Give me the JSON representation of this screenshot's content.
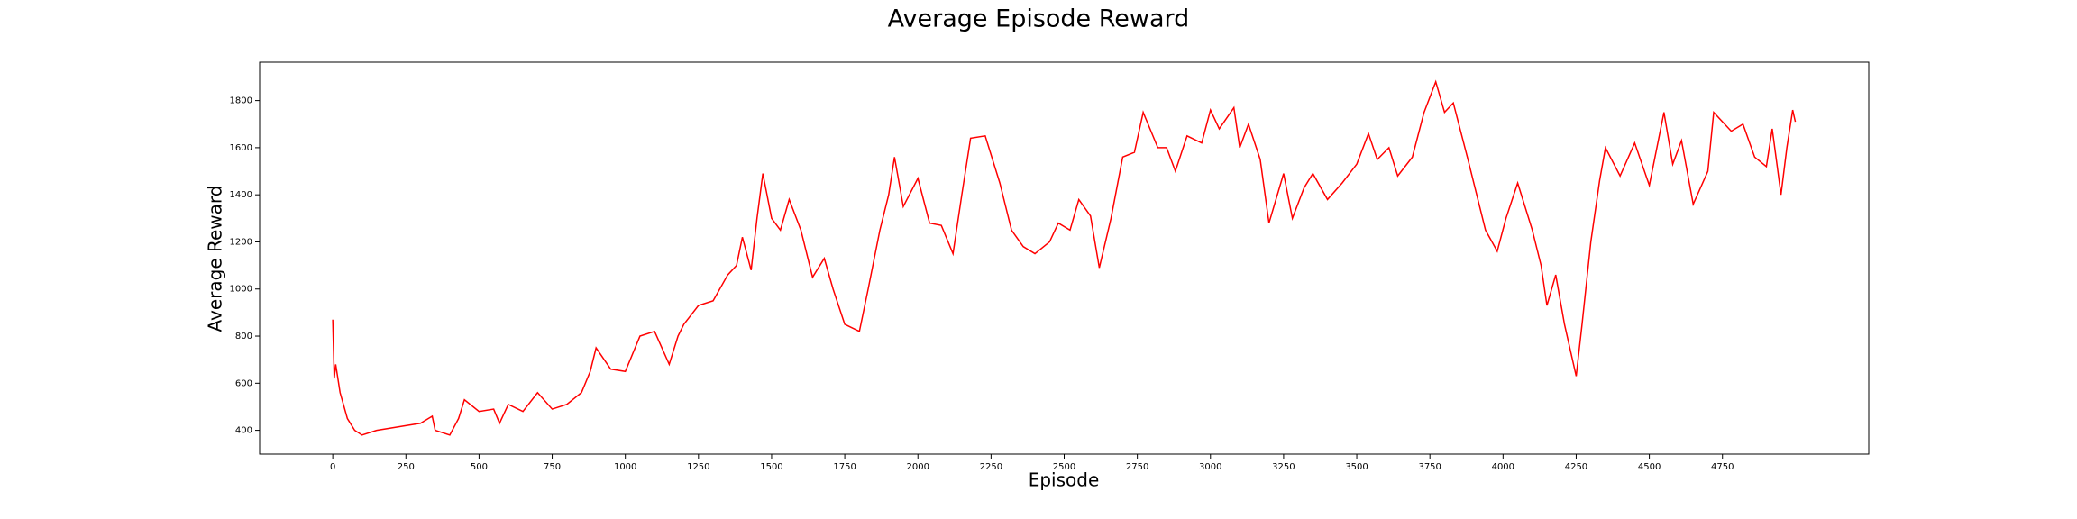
{
  "chart_data": {
    "type": "line",
    "title": "Average Episode Reward",
    "x_label": "Episode",
    "y_label": "Average Reward",
    "color": "#ff0000",
    "x": [
      0,
      5,
      10,
      25,
      50,
      75,
      100,
      150,
      200,
      250,
      300,
      340,
      350,
      400,
      430,
      450,
      500,
      550,
      570,
      600,
      650,
      700,
      750,
      800,
      850,
      880,
      900,
      950,
      1000,
      1050,
      1100,
      1150,
      1180,
      1200,
      1250,
      1300,
      1350,
      1380,
      1400,
      1430,
      1450,
      1470,
      1500,
      1530,
      1560,
      1600,
      1640,
      1680,
      1710,
      1750,
      1800,
      1830,
      1870,
      1900,
      1920,
      1950,
      2000,
      2040,
      2080,
      2120,
      2150,
      2180,
      2230,
      2280,
      2320,
      2360,
      2400,
      2450,
      2480,
      2520,
      2550,
      2590,
      2620,
      2660,
      2700,
      2740,
      2770,
      2820,
      2850,
      2880,
      2920,
      2970,
      3000,
      3030,
      3080,
      3100,
      3130,
      3170,
      3200,
      3250,
      3280,
      3320,
      3350,
      3400,
      3450,
      3500,
      3540,
      3570,
      3610,
      3640,
      3690,
      3730,
      3770,
      3800,
      3830,
      3880,
      3910,
      3940,
      3980,
      4010,
      4050,
      4100,
      4130,
      4150,
      4180,
      4210,
      4250,
      4270,
      4300,
      4330,
      4350,
      4400,
      4450,
      4500,
      4550,
      4580,
      4610,
      4650,
      4700,
      4720,
      4780,
      4820,
      4860,
      4900,
      4920,
      4950,
      4970,
      4990,
      4999
    ],
    "values": [
      870,
      620,
      680,
      560,
      450,
      400,
      380,
      400,
      410,
      420,
      430,
      460,
      400,
      380,
      450,
      530,
      480,
      490,
      430,
      510,
      480,
      560,
      490,
      510,
      560,
      650,
      750,
      660,
      650,
      800,
      820,
      680,
      800,
      850,
      930,
      950,
      1060,
      1100,
      1220,
      1080,
      1300,
      1490,
      1300,
      1250,
      1380,
      1250,
      1050,
      1130,
      1000,
      850,
      820,
      1000,
      1250,
      1400,
      1560,
      1350,
      1470,
      1280,
      1270,
      1150,
      1400,
      1640,
      1650,
      1450,
      1250,
      1180,
      1150,
      1200,
      1280,
      1250,
      1380,
      1310,
      1090,
      1300,
      1560,
      1580,
      1750,
      1600,
      1600,
      1500,
      1650,
      1620,
      1760,
      1680,
      1770,
      1600,
      1700,
      1550,
      1280,
      1490,
      1300,
      1430,
      1490,
      1380,
      1450,
      1530,
      1660,
      1550,
      1600,
      1480,
      1560,
      1750,
      1880,
      1750,
      1790,
      1550,
      1400,
      1250,
      1160,
      1300,
      1450,
      1250,
      1100,
      930,
      1060,
      850,
      630,
      850,
      1200,
      1460,
      1600,
      1480,
      1620,
      1440,
      1750,
      1530,
      1630,
      1360,
      1500,
      1750,
      1670,
      1700,
      1560,
      1520,
      1680,
      1400,
      1600,
      1760,
      1710
    ],
    "xlim": [
      -250,
      5250
    ],
    "ylim": [
      299,
      1963
    ],
    "xticks": [
      0,
      250,
      500,
      750,
      1000,
      1250,
      1500,
      1750,
      2000,
      2250,
      2500,
      2750,
      3000,
      3250,
      3500,
      3750,
      4000,
      4250,
      4500,
      4750
    ],
    "yticks": [
      400,
      600,
      800,
      1000,
      1200,
      1400,
      1600,
      1800
    ]
  }
}
